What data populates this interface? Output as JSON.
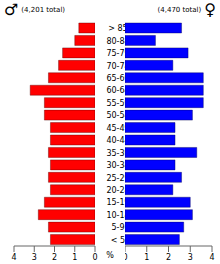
{
  "chart_data": {
    "type": "bar",
    "orientation": "horizontal",
    "categories": [
      "< 5",
      "5-9",
      "10-14",
      "15-19",
      "20-24",
      "25-29",
      "30-34",
      "35-39",
      "40-44",
      "45-49",
      "50-54",
      "55-59",
      "60-64",
      "65-69",
      "70-74",
      "75-79",
      "80-84",
      "> 85"
    ],
    "series": [
      {
        "name": "♂",
        "color": "#ff0000",
        "values": [
          2.2,
          2.3,
          2.8,
          2.5,
          2.2,
          2.3,
          2.2,
          2.3,
          2.2,
          2.2,
          2.5,
          2.5,
          3.2,
          2.3,
          1.8,
          1.6,
          1.0,
          0.8
        ]
      },
      {
        "name": "♀",
        "color": "#0000ff",
        "values": [
          2.5,
          2.7,
          3.1,
          3.0,
          2.2,
          2.6,
          2.3,
          3.3,
          2.3,
          2.3,
          3.1,
          3.6,
          3.6,
          3.6,
          2.2,
          2.9,
          1.4,
          2.6
        ]
      }
    ],
    "annotations": [
      "(4,201 total)",
      "(4,470 total)"
    ],
    "x_label": "%",
    "xlim": [
      0,
      4
    ],
    "xticks": [
      0,
      1,
      2,
      3,
      4
    ],
    "grid": false
  }
}
